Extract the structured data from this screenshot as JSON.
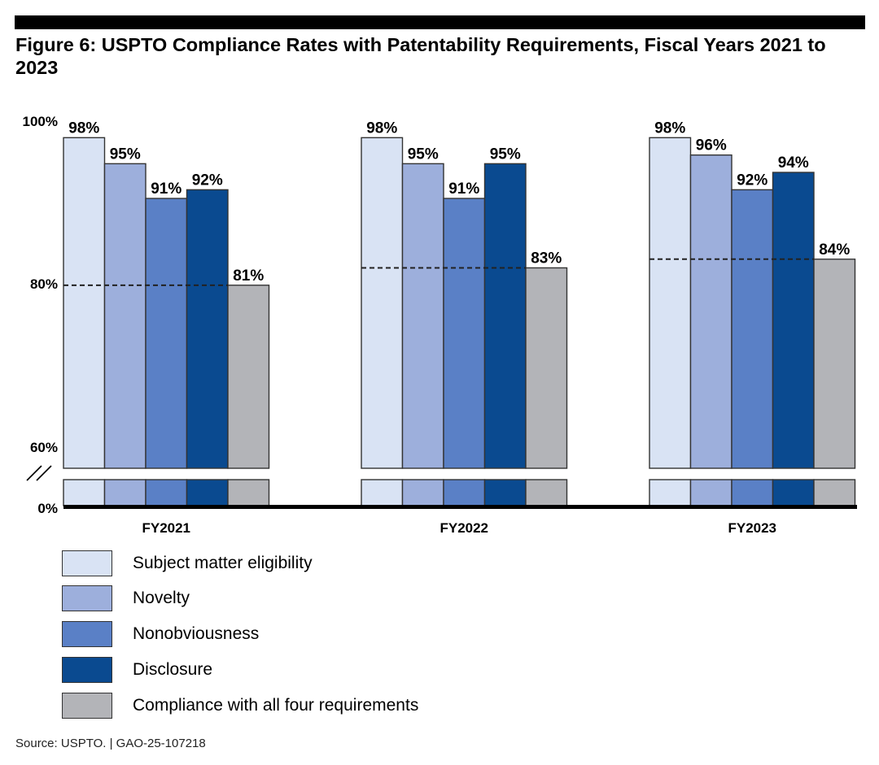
{
  "figure": {
    "title": "Figure 6: USPTO Compliance Rates with Patentability Requirements, Fiscal Years 2021 to 2023",
    "source": "Source: USPTO.  |  GAO-25-107218"
  },
  "colors": {
    "subject_matter": "#d9e3f4",
    "novelty": "#9dafdc",
    "nonobviousness": "#5a80c6",
    "disclosure": "#0a4a90",
    "all_four": "#b3b4b8",
    "outline": "#333333",
    "title_bar": "#000000"
  },
  "chart_data": {
    "type": "bar",
    "title": "Figure 6: USPTO Compliance Rates with Patentability Requirements, Fiscal Years 2021 to 2023",
    "xlabel": "",
    "ylabel": "",
    "categories": [
      "FY2021",
      "FY2022",
      "FY2023"
    ],
    "series": [
      {
        "name": "Subject matter eligibility",
        "values": [
          98,
          98,
          98
        ]
      },
      {
        "name": "Novelty",
        "values": [
          95,
          95,
          96
        ]
      },
      {
        "name": "Nonobviousness",
        "values": [
          91,
          91,
          92
        ]
      },
      {
        "name": "Disclosure",
        "values": [
          92,
          95,
          94
        ]
      },
      {
        "name": "Compliance with all four requirements",
        "values": [
          81,
          83,
          84
        ]
      }
    ],
    "data_labels": [
      [
        "98%",
        "95%",
        "91%",
        "92%",
        "81%"
      ],
      [
        "98%",
        "95%",
        "91%",
        "95%",
        "83%"
      ],
      [
        "98%",
        "96%",
        "92%",
        "94%",
        "84%"
      ]
    ],
    "y_ticks": [
      {
        "value": 100,
        "label": "100%"
      },
      {
        "value": 80,
        "label": "80%"
      },
      {
        "value": 60,
        "label": "60%"
      },
      {
        "value": 0,
        "label": "0%"
      }
    ],
    "ylim": [
      60,
      100
    ],
    "axis_break": "between 0% and 60%",
    "reference_line": "dashed line at the all-four-requirements rate",
    "grid": false,
    "legend_position": "bottom-left"
  }
}
